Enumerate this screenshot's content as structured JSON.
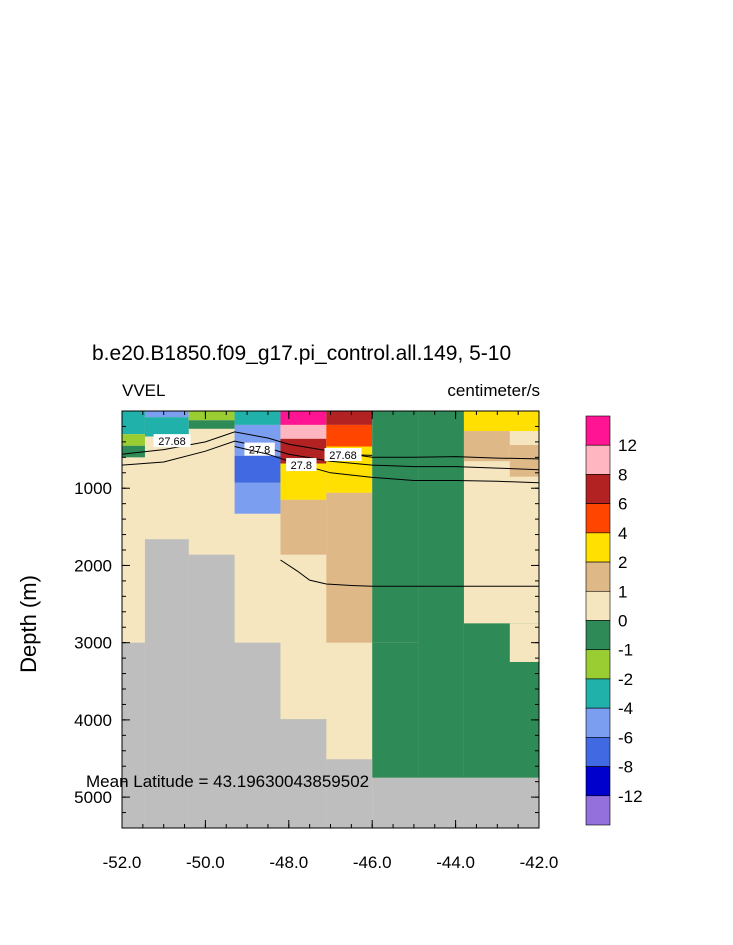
{
  "chart_data": {
    "type": "heatmap",
    "title": "b.e20.B1850.f09_g17.pi_control.all.149, 5-10",
    "left_label": "VVEL",
    "right_label": "centimeter/s",
    "ylabel": "Depth (m)",
    "xlabel": "",
    "xlim": [
      -52.0,
      -42.0
    ],
    "ylim": [
      5400,
      0
    ],
    "x_ticks": [
      -52.0,
      -50.0,
      -48.0,
      -46.0,
      -44.0,
      -42.0
    ],
    "x_tick_labels": [
      "-52.0",
      "-50.0",
      "-48.0",
      "-46.0",
      "-44.0",
      "-42.0"
    ],
    "y_ticks": [
      1000,
      2000,
      3000,
      4000,
      5000
    ],
    "y_tick_labels": [
      "1000",
      "2000",
      "3000",
      "4000",
      "5000"
    ],
    "annotation": "Mean Latitude = 43.19630043859502",
    "colorbar": {
      "labels": [
        "12",
        "8",
        "6",
        "4",
        "2",
        "1",
        "0",
        "-1",
        "-2",
        "-4",
        "-6",
        "-8",
        "-12"
      ],
      "colors": [
        "#ff1493",
        "#ffb6c1",
        "#b22222",
        "#ff4500",
        "#ffe000",
        "#deb887",
        "#f5e6c0",
        "#2e8b57",
        "#9acd32",
        "#20b2aa",
        "#7b9ef0",
        "#4169e1",
        "#0000cd",
        "#9370db"
      ]
    },
    "land_color": "#bebebe",
    "default_color": "#f5e6c0",
    "cells": [
      {
        "x0": -52.0,
        "x1": -51.45,
        "y0": 0,
        "y1": 300,
        "color": "#20b2aa"
      },
      {
        "x0": -52.0,
        "x1": -51.45,
        "y0": 300,
        "y1": 450,
        "color": "#9acd32"
      },
      {
        "x0": -52.0,
        "x1": -51.45,
        "y0": 450,
        "y1": 600,
        "color": "#2e8b57"
      },
      {
        "x0": -51.45,
        "x1": -50.4,
        "y0": 0,
        "y1": 80,
        "color": "#7b9ef0"
      },
      {
        "x0": -51.45,
        "x1": -50.4,
        "y0": 80,
        "y1": 330,
        "color": "#20b2aa"
      },
      {
        "x0": -50.4,
        "x1": -49.3,
        "y0": 0,
        "y1": 120,
        "color": "#9acd32"
      },
      {
        "x0": -50.4,
        "x1": -49.3,
        "y0": 120,
        "y1": 230,
        "color": "#2e8b57"
      },
      {
        "x0": -49.3,
        "x1": -48.2,
        "y0": 0,
        "y1": 180,
        "color": "#20b2aa"
      },
      {
        "x0": -49.3,
        "x1": -48.2,
        "y0": 180,
        "y1": 580,
        "color": "#7b9ef0"
      },
      {
        "x0": -49.3,
        "x1": -48.2,
        "y0": 580,
        "y1": 930,
        "color": "#4169e1"
      },
      {
        "x0": -49.3,
        "x1": -48.2,
        "y0": 930,
        "y1": 1330,
        "color": "#7b9ef0"
      },
      {
        "x0": -48.2,
        "x1": -47.1,
        "y0": 0,
        "y1": 180,
        "color": "#ff1493"
      },
      {
        "x0": -48.2,
        "x1": -47.1,
        "y0": 180,
        "y1": 360,
        "color": "#ffb6c1"
      },
      {
        "x0": -48.2,
        "x1": -47.1,
        "y0": 360,
        "y1": 680,
        "color": "#b22222"
      },
      {
        "x0": -48.2,
        "x1": -47.1,
        "y0": 680,
        "y1": 1150,
        "color": "#ffe000"
      },
      {
        "x0": -48.2,
        "x1": -47.1,
        "y0": 1150,
        "y1": 1860,
        "color": "#deb887"
      },
      {
        "x0": -47.1,
        "x1": -46.0,
        "y0": 0,
        "y1": 180,
        "color": "#b22222"
      },
      {
        "x0": -47.1,
        "x1": -46.0,
        "y0": 180,
        "y1": 460,
        "color": "#ff4500"
      },
      {
        "x0": -47.1,
        "x1": -46.0,
        "y0": 460,
        "y1": 1060,
        "color": "#ffe000"
      },
      {
        "x0": -47.1,
        "x1": -46.0,
        "y0": 1060,
        "y1": 3000,
        "color": "#deb887"
      },
      {
        "x0": -46.0,
        "x1": -44.9,
        "y0": 0,
        "y1": 3000,
        "color": "#2e8b57"
      },
      {
        "x0": -46.0,
        "x1": -44.9,
        "y0": 3000,
        "y1": 4750,
        "color": "#2e8b57"
      },
      {
        "x0": -44.9,
        "x1": -43.8,
        "y0": 0,
        "y1": 4750,
        "color": "#2e8b57"
      },
      {
        "x0": -43.8,
        "x1": -42.0,
        "y0": 0,
        "y1": 260,
        "color": "#ffe000"
      },
      {
        "x0": -43.8,
        "x1": -42.7,
        "y0": 260,
        "y1": 650,
        "color": "#deb887"
      },
      {
        "x0": -42.7,
        "x1": -42.0,
        "y0": 440,
        "y1": 850,
        "color": "#deb887"
      },
      {
        "x0": -43.8,
        "x1": -42.0,
        "y0": 2750,
        "y1": 4750,
        "color": "#2e8b57"
      },
      {
        "x0": -42.7,
        "x1": -42.0,
        "y0": 2750,
        "y1": 3250,
        "color": "#f5e6c0"
      }
    ],
    "land": [
      {
        "x0": -52.0,
        "x1": -51.45,
        "y0": 3000,
        "y1": 5400
      },
      {
        "x0": -51.45,
        "x1": -50.4,
        "y0": 1660,
        "y1": 5400
      },
      {
        "x0": -50.4,
        "x1": -49.3,
        "y0": 1860,
        "y1": 5400
      },
      {
        "x0": -49.3,
        "x1": -48.2,
        "y0": 3000,
        "y1": 5400
      },
      {
        "x0": -48.2,
        "x1": -47.1,
        "y0": 3990,
        "y1": 5400
      },
      {
        "x0": -47.1,
        "x1": -46.0,
        "y0": 4510,
        "y1": 5400
      },
      {
        "x0": -46.0,
        "x1": -42.0,
        "y0": 4750,
        "y1": 5400
      }
    ],
    "contours": [
      {
        "label": "27.68",
        "label_at": [
          -50.8,
          390
        ],
        "x": [
          -52.0,
          -51.0,
          -50.0,
          -49.3,
          -48.5,
          -48.0,
          -47.0,
          -46.0,
          -45.0,
          -44.0,
          -43.0,
          -42.0
        ],
        "y": [
          560,
          500,
          400,
          270,
          350,
          430,
          520,
          600,
          600,
          590,
          610,
          620
        ]
      },
      {
        "label": "27.8",
        "label_at": [
          -48.7,
          500
        ],
        "x": [
          -52.0,
          -51.0,
          -50.0,
          -49.3,
          -48.5,
          -48.0,
          -47.0,
          -46.0,
          -45.0,
          -44.0,
          -43.0,
          -42.0
        ],
        "y": [
          700,
          660,
          520,
          390,
          480,
          560,
          650,
          700,
          720,
          720,
          740,
          760
        ]
      },
      {
        "label": "27.8",
        "label_at": [
          -47.7,
          700
        ],
        "x": [
          -49.3,
          -48.5,
          -48.0,
          -47.0,
          -46.0,
          -45.0,
          -44.0,
          -43.0,
          -42.0
        ],
        "y": [
          460,
          560,
          650,
          800,
          860,
          900,
          900,
          910,
          930
        ]
      },
      {
        "label": "27.68",
        "label_at": [
          -46.7,
          570
        ],
        "x": [
          -46.3,
          -46.0
        ],
        "y": [
          570,
          575
        ]
      },
      {
        "label": "",
        "label_at": null,
        "x": [
          -48.2,
          -47.8,
          -47.5,
          -47.1,
          -46.5,
          -46.0,
          -45.0,
          -44.0,
          -43.0,
          -42.0
        ],
        "y": [
          1930,
          2070,
          2190,
          2240,
          2260,
          2270,
          2270,
          2270,
          2270,
          2270
        ]
      }
    ]
  }
}
